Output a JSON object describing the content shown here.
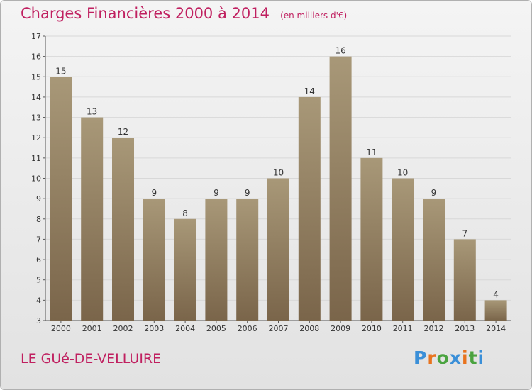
{
  "title": "Charges Financières 2000 à 2014",
  "unit_note": "(en milliers d'€)",
  "location": "LE GUé-DE-VELLUIRE",
  "brand": "Proxiti",
  "brand_colors": [
    "#3a8fd8",
    "#e8731e",
    "#4aa33f",
    "#3a8fd8",
    "#e8731e",
    "#4aa33f",
    "#3a8fd8"
  ],
  "colors": {
    "title": "#c02060",
    "bar_top": "#a89878",
    "bar_bottom": "#7a654a",
    "axis": "#555555"
  },
  "chart_data": {
    "type": "bar",
    "categories": [
      "2000",
      "2001",
      "2002",
      "2003",
      "2004",
      "2005",
      "2006",
      "2007",
      "2008",
      "2009",
      "2010",
      "2011",
      "2012",
      "2013",
      "2014"
    ],
    "values": [
      15,
      13,
      12,
      9,
      8,
      9,
      9,
      10,
      14,
      16,
      11,
      10,
      9,
      7,
      4
    ],
    "ylim": [
      3,
      17
    ],
    "yticks": [
      3,
      4,
      5,
      6,
      7,
      8,
      9,
      10,
      11,
      12,
      13,
      14,
      15,
      16,
      17
    ],
    "grid": true,
    "data_labels": true
  }
}
